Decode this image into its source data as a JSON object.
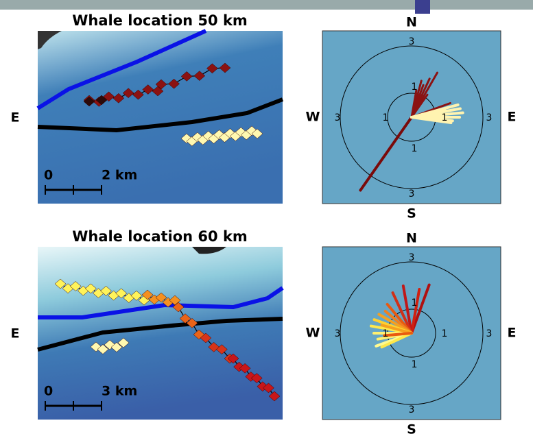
{
  "panels": [
    {
      "title": "Whale location 50 km",
      "scale_start": "0",
      "scale_end": "2 km",
      "side_label": "E"
    },
    {
      "title": "Whale location 60 km",
      "scale_start": "0",
      "scale_end": "3 km",
      "side_label": "E"
    }
  ],
  "roses": [
    {
      "north": "N",
      "south": "S",
      "west": "W",
      "east": "E",
      "outer_ring": "3",
      "inner_ring": "1"
    },
    {
      "north": "N",
      "south": "S",
      "west": "W",
      "east": "E",
      "outer_ring": "3",
      "inner_ring": "1"
    }
  ]
}
